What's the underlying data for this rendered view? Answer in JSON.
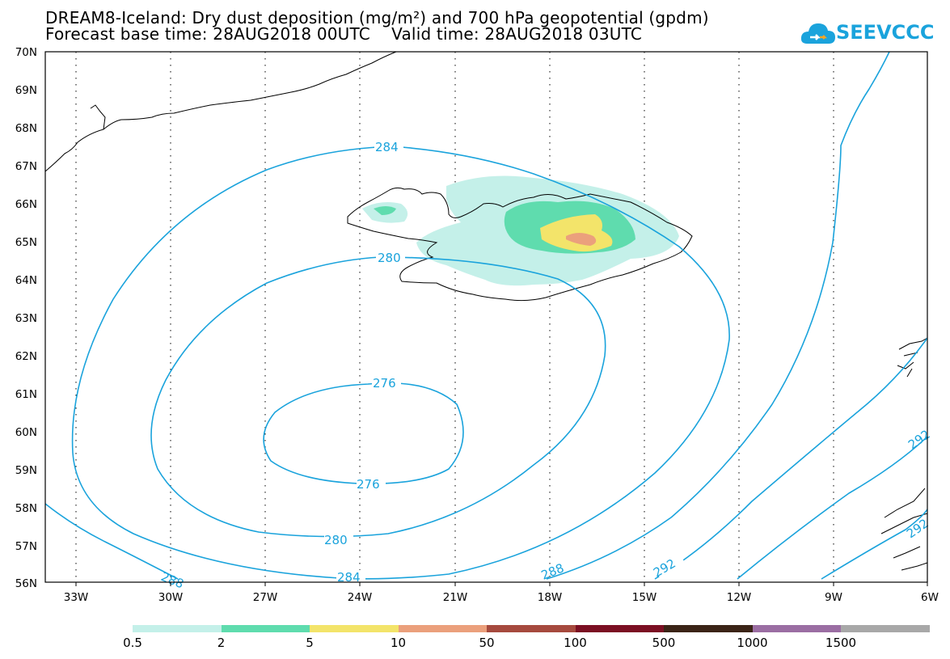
{
  "title": {
    "line1": "DREAM8-Iceland: Dry dust deposition (mg/m²) and 700 hPa geopotential (gpdm)",
    "line2": "Forecast base time: 28AUG2018 00UTC    Valid time: 28AUG2018 03UTC"
  },
  "logo": {
    "text": "SEEVCCC",
    "icon": "cloud-icon",
    "color": "#1aa3dc"
  },
  "map": {
    "lat_labels": [
      "70N",
      "69N",
      "68N",
      "67N",
      "66N",
      "65N",
      "64N",
      "63N",
      "62N",
      "61N",
      "60N",
      "59N",
      "58N",
      "57N",
      "56N"
    ],
    "lon_labels": [
      "33W",
      "30W",
      "27W",
      "24W",
      "21W",
      "18W",
      "15W",
      "12W",
      "9W",
      "6W"
    ],
    "contour_color": "#1aa3dc",
    "contour_labels": [
      "284",
      "280",
      "276",
      "276",
      "280",
      "284",
      "288",
      "288",
      "292",
      "292",
      "292"
    ]
  },
  "colorbar": {
    "colors": [
      "#c4f0e9",
      "#5fdcae",
      "#f3e46a",
      "#eba07c",
      "#a64a3e",
      "#7b0f23",
      "#3b2417",
      "#9b6ea3",
      "#a8a8a8"
    ],
    "labels": [
      "0.5",
      "2",
      "5",
      "10",
      "50",
      "100",
      "500",
      "1000",
      "1500"
    ]
  }
}
